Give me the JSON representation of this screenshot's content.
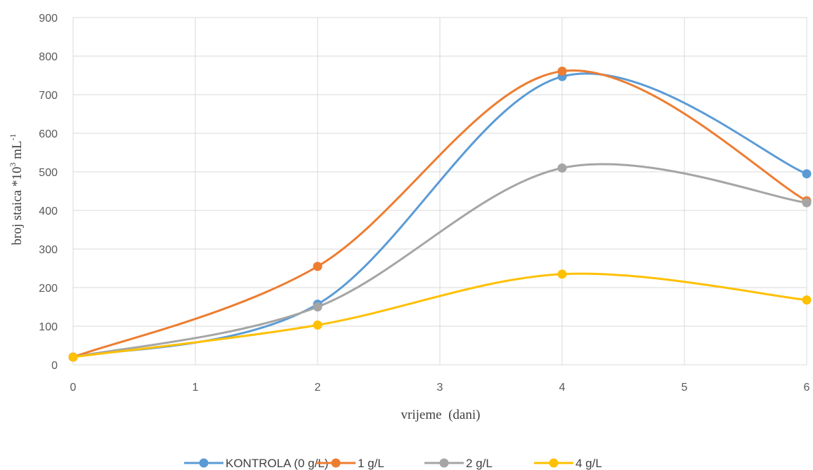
{
  "chart_data": {
    "type": "line",
    "smooth": true,
    "xlabel": "vrijeme  (dani)",
    "ylabel": {
      "main": "broj staica *10",
      "exp1": "3",
      "unit": " mL",
      "exp2": "-1"
    },
    "xlim": [
      0,
      6
    ],
    "ylim": [
      0,
      900
    ],
    "x_ticks": [
      0,
      1,
      2,
      3,
      4,
      5,
      6
    ],
    "y_ticks": [
      0,
      100,
      200,
      300,
      400,
      500,
      600,
      700,
      800,
      900
    ],
    "grid": true,
    "legend_position": "bottom",
    "series": [
      {
        "name": "KONTROLA (0 g/L)",
        "color": "#5B9BD5",
        "x": [
          0,
          2,
          4,
          6
        ],
        "y": [
          20,
          157,
          747,
          495
        ]
      },
      {
        "name": "1 g/L",
        "color": "#ED7D31",
        "x": [
          0,
          2,
          4,
          6
        ],
        "y": [
          20,
          255,
          761,
          425
        ]
      },
      {
        "name": "2 g/L",
        "color": "#A5A5A5",
        "x": [
          0,
          2,
          4,
          6
        ],
        "y": [
          20,
          150,
          510,
          420
        ]
      },
      {
        "name": "4 g/L",
        "color": "#FFC000",
        "x": [
          0,
          2,
          4,
          6
        ],
        "y": [
          20,
          103,
          235,
          168
        ]
      }
    ]
  }
}
